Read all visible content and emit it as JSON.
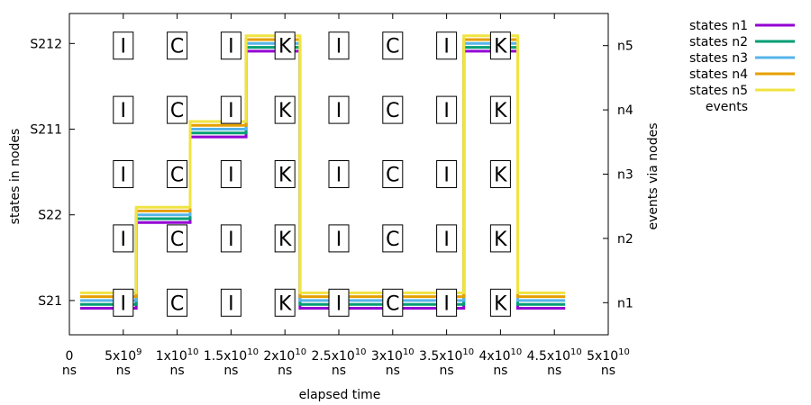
{
  "chart_data": {
    "type": "line",
    "subtype": "step",
    "xlabel": "elapsed time",
    "ylabel_left": "states in nodes",
    "ylabel_right": "events via nodes",
    "xlim": [
      0,
      50000000000
    ],
    "ylim_left": [
      0.6,
      4.35
    ],
    "ylim_right": [
      0.5,
      5.5
    ],
    "grid": false,
    "legend_position": "outside-top-right",
    "x_ticks": [
      {
        "value": 0,
        "mantissa": "0",
        "exp": "",
        "unit": "ns"
      },
      {
        "value": 5000000000,
        "mantissa": "5x10",
        "exp": "9",
        "unit": "ns"
      },
      {
        "value": 10000000000,
        "mantissa": "1x10",
        "exp": "10",
        "unit": "ns"
      },
      {
        "value": 15000000000,
        "mantissa": "1.5x10",
        "exp": "10",
        "unit": "ns"
      },
      {
        "value": 20000000000,
        "mantissa": "2x10",
        "exp": "10",
        "unit": "ns"
      },
      {
        "value": 25000000000,
        "mantissa": "2.5x10",
        "exp": "10",
        "unit": "ns"
      },
      {
        "value": 30000000000,
        "mantissa": "3x10",
        "exp": "10",
        "unit": "ns"
      },
      {
        "value": 35000000000,
        "mantissa": "3.5x10",
        "exp": "10",
        "unit": "ns"
      },
      {
        "value": 40000000000,
        "mantissa": "4x10",
        "exp": "10",
        "unit": "ns"
      },
      {
        "value": 45000000000,
        "mantissa": "4.5x10",
        "exp": "10",
        "unit": "ns"
      },
      {
        "value": 50000000000,
        "mantissa": "5x10",
        "exp": "10",
        "unit": "ns"
      }
    ],
    "y_ticks_left": [
      {
        "value": 1,
        "label": "S21"
      },
      {
        "value": 2,
        "label": "S22"
      },
      {
        "value": 3,
        "label": "S211"
      },
      {
        "value": 4,
        "label": "S212"
      }
    ],
    "y_ticks_right": [
      {
        "value": 1,
        "label": "n1"
      },
      {
        "value": 2,
        "label": "n2"
      },
      {
        "value": 3,
        "label": "n3"
      },
      {
        "value": 4,
        "label": "n4"
      },
      {
        "value": 5,
        "label": "n5"
      }
    ],
    "transitions_x": [
      1000000000,
      6200000000,
      11200000000,
      16400000000,
      21400000000,
      36600000000,
      41600000000,
      46000000000
    ],
    "states_sequence": [
      1,
      2,
      3,
      4,
      1,
      4,
      1
    ],
    "series": [
      {
        "name": "states n1",
        "color": "#9400d3",
        "offset": -0.09
      },
      {
        "name": "states n2",
        "color": "#009e73",
        "offset": -0.045
      },
      {
        "name": "states n3",
        "color": "#56b4e9",
        "offset": 0
      },
      {
        "name": "states n4",
        "color": "#e69f00",
        "offset": 0.045
      },
      {
        "name": "states n5",
        "color": "#f0e442",
        "offset": 0.09
      }
    ],
    "events_legend_label": "events",
    "event_columns_x": [
      5000000000,
      10000000000,
      15000000000,
      20000000000,
      25000000000,
      30000000000,
      35000000000,
      40000000000
    ],
    "event_letters": [
      "I",
      "C",
      "I",
      "K",
      "I",
      "C",
      "I",
      "K"
    ],
    "event_rows": [
      1,
      2,
      3,
      4,
      5
    ]
  }
}
